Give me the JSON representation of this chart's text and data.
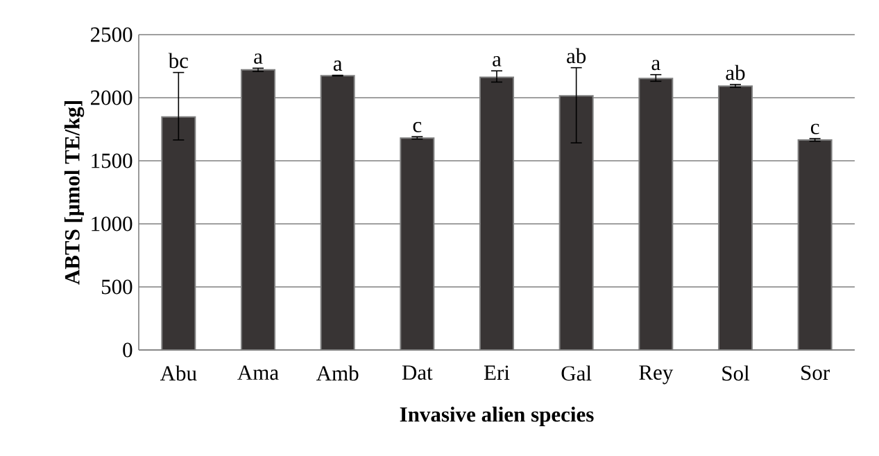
{
  "chart_data": {
    "type": "bar",
    "xlabel": "Invasive alien species",
    "ylabel": "ABTS [μmol TE/kg]",
    "categories": [
      "Abu",
      "Ama",
      "Amb",
      "Dat",
      "Eri",
      "Gal",
      "Rey",
      "Sol",
      "Sor"
    ],
    "values": [
      1848,
      2221,
      2175,
      1680,
      2162,
      2015,
      2152,
      2092,
      1665
    ],
    "errors": [
      [
        1665,
        2200
      ],
      [
        2208,
        2234
      ],
      [
        2172,
        2178
      ],
      [
        1672,
        1691
      ],
      [
        2124,
        2213
      ],
      [
        1642,
        2238
      ],
      [
        2130,
        2183
      ],
      [
        2082,
        2105
      ],
      [
        1655,
        1676
      ]
    ],
    "color": "#383434",
    "ylim": [
      0,
      2500
    ],
    "yticks": [
      0,
      500,
      1000,
      1500,
      2000,
      2500
    ],
    "grid": "y",
    "annotations": [
      {
        "text": "bc",
        "x": "Abu",
        "y": 2200
      },
      {
        "text": "a",
        "x": "Ama",
        "y": 2234
      },
      {
        "text": "a",
        "x": "Amb",
        "y": 2178
      },
      {
        "text": "c",
        "x": "Dat",
        "y": 1691
      },
      {
        "text": "a",
        "x": "Eri",
        "y": 2213
      },
      {
        "text": "ab",
        "x": "Gal",
        "y": 2238
      },
      {
        "text": "a",
        "x": "Rey",
        "y": 2183
      },
      {
        "text": "ab",
        "x": "Sol",
        "y": 2105
      },
      {
        "text": "c",
        "x": "Sor",
        "y": 1676
      }
    ]
  }
}
